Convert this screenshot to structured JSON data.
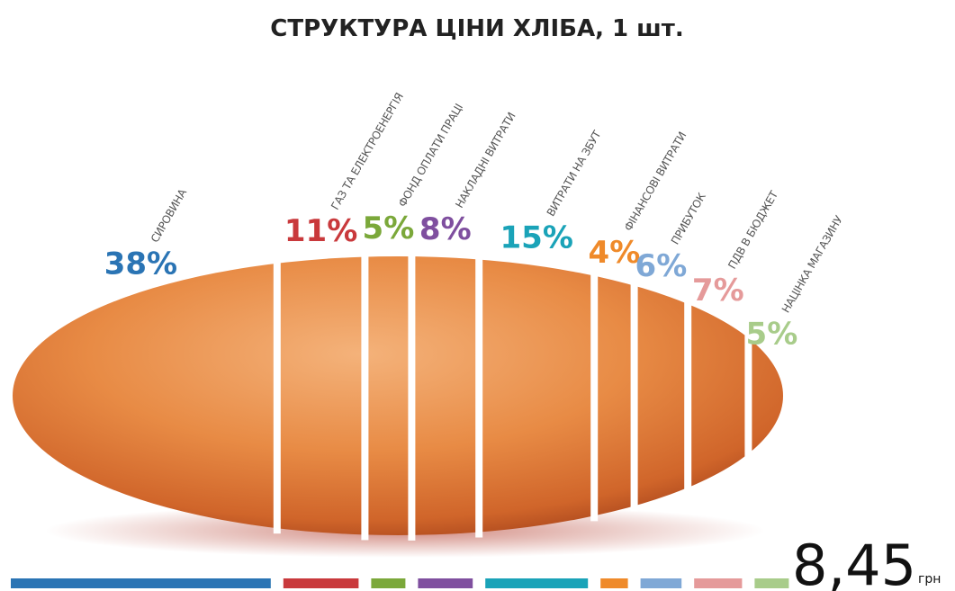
{
  "chart_data": {
    "type": "bar",
    "title": "СТРУКТУРА ЦІНИ ХЛІБА, 1 шт.",
    "categories": [
      "СИРОВИНА",
      "ГАЗ ТА ЕЛЕКТРОЕНЕРГІЯ",
      "ФОНД ОПЛАТИ ПРАЦІ",
      "НАКЛАДНІ ВИТРАТИ",
      "ВИТРАТИ НА ЗБУТ",
      "ФІНАНСОВІ ВИТРАТИ",
      "ПРИБУТОК",
      "ПДВ В БЮДЖЕТ",
      "НАЦІНКА МАГАЗИНУ"
    ],
    "values": [
      38,
      11,
      5,
      8,
      15,
      4,
      6,
      7,
      5
    ],
    "value_labels": [
      "38%",
      "11%",
      "5%",
      "8%",
      "15%",
      "4%",
      "6%",
      "7%",
      "5%"
    ],
    "colors": [
      "#2a74b4",
      "#c9393c",
      "#7ba83a",
      "#7f4f9f",
      "#1aa3b8",
      "#ef8a2a",
      "#7fa8d6",
      "#e59a9a",
      "#a8cc8a"
    ],
    "total": "8,45",
    "total_unit": "грн"
  }
}
